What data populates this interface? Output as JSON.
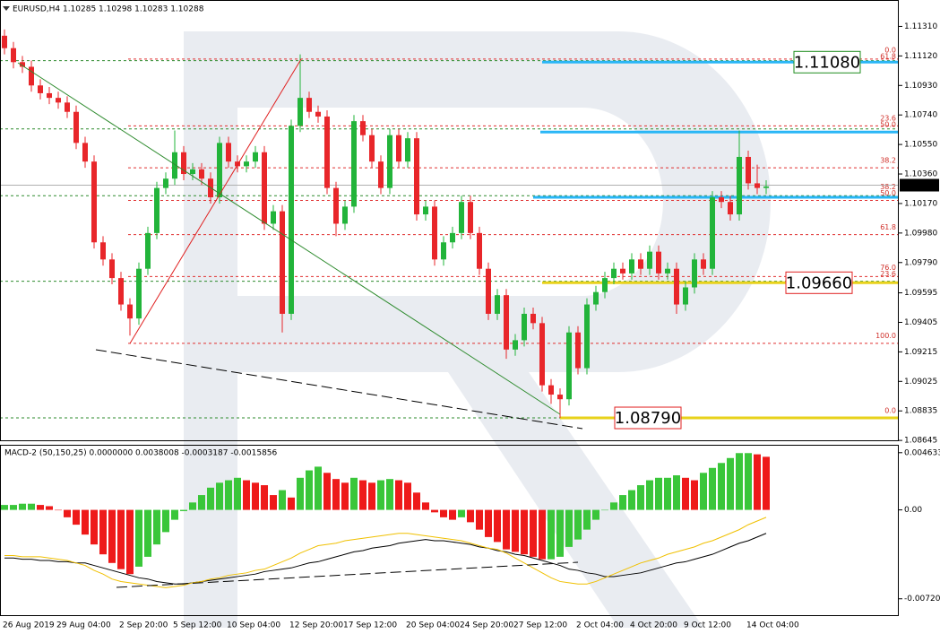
{
  "chart_data": [
    {
      "type": "candlestick",
      "title": "EURUSD,H4  1.10285 1.10298 1.10283 1.10288",
      "categories": [
        "26 Aug 2019",
        null,
        null,
        null,
        null,
        null,
        "29 Aug 04:00",
        null,
        null,
        null,
        null,
        null,
        null,
        "2 Sep 20:00",
        null,
        null,
        null,
        null,
        null,
        "5 Sep 12:00",
        null,
        null,
        null,
        null,
        null,
        "10 Sep 04:00",
        null,
        null,
        null,
        null,
        null,
        null,
        "12 Sep 20:00",
        null,
        null,
        null,
        null,
        null,
        "17 Sep 12:00",
        null,
        null,
        null,
        null,
        null,
        null,
        "20 Sep 04:00",
        null,
        null,
        null,
        null,
        null,
        "24 Sep 20:00",
        null,
        null,
        null,
        null,
        null,
        "27 Sep 12:00",
        null,
        null,
        null,
        null,
        null,
        null,
        "2 Oct 04:00",
        null,
        null,
        null,
        null,
        null,
        "4 Oct 20:00",
        null,
        null,
        null,
        null,
        null,
        "9 Oct 12:00",
        null,
        null,
        null,
        null,
        null,
        null,
        "14 Oct 04:00",
        null,
        null
      ],
      "open": [
        1.1125,
        1.1117,
        1.1108,
        1.1105,
        1.1093,
        1.1088,
        1.1085,
        1.1082,
        1.1076,
        1.1056,
        1.1044,
        1.0992,
        1.0981,
        1.0969,
        1.0952,
        1.0943,
        1.0975,
        1.0998,
        1.1027,
        1.1033,
        1.105,
        1.1036,
        1.1039,
        1.1033,
        1.1021,
        1.1056,
        1.1044,
        1.1041,
        1.1044,
        1.105,
        1.1004,
        1.1012,
        1.0946,
        1.1067,
        1.1085,
        1.1076,
        1.1073,
        1.1027,
        1.1004,
        1.1015,
        1.107,
        1.1061,
        1.1044,
        1.1027,
        1.1061,
        1.1044,
        1.1059,
        1.101,
        1.1015,
        1.0981,
        1.0992,
        1.0998,
        1.1018,
        1.0998,
        1.0975,
        1.0946,
        1.0958,
        1.0923,
        1.0929,
        1.0946,
        1.094,
        1.09,
        1.0894,
        1.0891,
        1.0934,
        1.0911,
        1.0952,
        1.096,
        1.0969,
        1.0975,
        1.0972,
        1.0981,
        1.0975,
        1.0986,
        1.0972,
        1.0975,
        1.0952,
        1.0963,
        1.0981,
        1.0975,
        1.1021,
        1.1018,
        1.101,
        1.1047,
        1.103,
        1.1027
      ],
      "high": [
        1.1129,
        1.1121,
        1.1112,
        1.1109,
        1.1097,
        1.1092,
        1.1089,
        1.1086,
        1.108,
        1.106,
        1.1048,
        1.0996,
        1.0985,
        1.0973,
        1.0956,
        1.0979,
        1.1002,
        1.1031,
        1.1037,
        1.1064,
        1.1054,
        1.1043,
        1.1043,
        1.1037,
        1.106,
        1.106,
        1.1048,
        1.1048,
        1.1054,
        1.1054,
        1.1016,
        1.1016,
        1.1071,
        1.1113,
        1.1089,
        1.108,
        1.1077,
        1.1031,
        1.1019,
        1.1074,
        1.1074,
        1.1065,
        1.1048,
        1.1065,
        1.1065,
        1.1063,
        1.1063,
        1.1019,
        1.1019,
        1.0996,
        1.1002,
        1.1022,
        1.1022,
        1.1002,
        1.0979,
        1.0962,
        1.0962,
        1.0933,
        1.095,
        1.095,
        1.0944,
        1.0904,
        1.0898,
        1.0938,
        1.0938,
        1.0956,
        1.0964,
        1.0973,
        1.0979,
        1.0979,
        1.0985,
        1.0985,
        1.099,
        1.099,
        1.0979,
        1.0979,
        1.0967,
        1.0985,
        1.0985,
        1.1025,
        1.1025,
        1.1022,
        1.1064,
        1.1051,
        1.1042,
        1.1032
      ],
      "low": [
        1.1113,
        1.1104,
        1.1101,
        1.1089,
        1.1084,
        1.1081,
        1.1078,
        1.1072,
        1.1052,
        1.104,
        1.0988,
        1.0977,
        1.0965,
        1.0948,
        1.0932,
        1.0939,
        1.0971,
        1.0994,
        1.1023,
        1.1029,
        1.1032,
        1.1032,
        1.1029,
        1.1017,
        1.1017,
        1.104,
        1.1037,
        1.1037,
        1.104,
        1.1,
        1.1,
        1.0934,
        1.0942,
        1.1063,
        1.1072,
        1.1069,
        1.1023,
        1.0996,
        1.1,
        1.1011,
        1.1057,
        1.104,
        1.1023,
        1.1023,
        1.104,
        1.104,
        1.1006,
        1.1006,
        1.0977,
        1.0977,
        1.0988,
        1.0994,
        1.0994,
        1.0971,
        1.0942,
        1.0942,
        1.0917,
        1.0919,
        1.0925,
        1.0936,
        1.0896,
        1.0888,
        1.0879,
        1.0887,
        1.0907,
        1.0907,
        1.0948,
        1.0956,
        1.0965,
        1.0968,
        1.0968,
        1.0971,
        1.0971,
        1.0968,
        1.0968,
        1.0946,
        1.0948,
        1.0959,
        1.0971,
        1.0971,
        1.1014,
        1.1006,
        1.1006,
        1.1026,
        1.1023,
        1.1023
      ],
      "close": [
        1.1117,
        1.1108,
        1.1105,
        1.1093,
        1.1088,
        1.1085,
        1.1082,
        1.1076,
        1.1056,
        1.1044,
        1.0992,
        1.0981,
        1.0969,
        1.0952,
        1.0943,
        1.0975,
        1.0998,
        1.1027,
        1.1033,
        1.105,
        1.1036,
        1.1039,
        1.1033,
        1.1021,
        1.1056,
        1.1044,
        1.1041,
        1.1044,
        1.105,
        1.1004,
        1.1012,
        1.0946,
        1.1067,
        1.1085,
        1.1076,
        1.1073,
        1.1027,
        1.1004,
        1.1015,
        1.107,
        1.1061,
        1.1044,
        1.1027,
        1.1061,
        1.1044,
        1.1059,
        1.101,
        1.1015,
        1.0981,
        1.0992,
        1.0998,
        1.1018,
        1.0998,
        1.0975,
        1.0946,
        1.0958,
        1.0923,
        1.0929,
        1.0946,
        1.094,
        1.09,
        1.0894,
        1.0891,
        1.0934,
        1.0911,
        1.0952,
        1.096,
        1.0969,
        1.0975,
        1.0972,
        1.0981,
        1.0975,
        1.0986,
        1.0972,
        1.0975,
        1.0952,
        1.0963,
        1.0981,
        1.0975,
        1.1021,
        1.1018,
        1.101,
        1.1047,
        1.103,
        1.1027,
        1.1028
      ],
      "up_color": "#22b43a",
      "down_color": "#e8262a",
      "ylim": [
        1.0864,
        1.1148
      ],
      "yticks": [
        {
          "value": 1.1131,
          "label": "1.11310"
        },
        {
          "value": 1.1112,
          "label": "1.11120"
        },
        {
          "value": 1.1093,
          "label": "1.10930"
        },
        {
          "value": 1.1074,
          "label": "1.10740"
        },
        {
          "value": 1.1055,
          "label": "1.10550"
        },
        {
          "value": 1.1036,
          "label": "1.10360"
        },
        {
          "value": 1.1017,
          "label": "1.10170"
        },
        {
          "value": 1.0998,
          "label": "1.09980"
        },
        {
          "value": 1.0979,
          "label": "1.09790"
        },
        1.09595,
        1.09405,
        1.09215,
        1.09025,
        1.08835,
        1.08645
      ],
      "last_price": 1.10288,
      "guide_lines": [
        1.1109,
        1.1065,
        1.1022,
        1.0967,
        1.0879
      ],
      "guide_color": "#2e8b2e",
      "fib_lines": [
        1.111,
        1.1067,
        1.104,
        1.1019,
        1.0997,
        1.097,
        1.0927
      ],
      "fib_color": "#e03030",
      "fib_labels": [
        {
          "label": "0.0",
          "value": 1.1114
        },
        {
          "label": "61.8",
          "value": 1.111
        },
        {
          "label": "23.6",
          "value": 1.107
        },
        {
          "label": "50.0",
          "value": 1.1066
        },
        {
          "label": "38.2",
          "value": 1.1043
        },
        {
          "label": "38.2",
          "value": 1.1026
        },
        {
          "label": "50.0",
          "value": 1.1022
        },
        {
          "label": "61.8",
          "value": 1.1
        },
        {
          "label": "76.0",
          "value": 1.0974
        },
        {
          "label": "23.6",
          "value": 1.097
        },
        {
          "label": "100.0",
          "value": 1.093
        },
        {
          "label": "0.0",
          "value": 1.0882
        }
      ],
      "levels": [
        {
          "value": 1.1063,
          "color": "#29b6f6"
        },
        {
          "value": 1.1021,
          "color": "#29b6f6"
        }
      ],
      "targets": [
        {
          "value": 1.1108,
          "label": "1.11080",
          "line_color": "#29b6f6",
          "label_color": "#1e8c1e"
        },
        {
          "value": 1.0966,
          "label": "1.09660",
          "line_color": "#e8d21a",
          "label_color": "#e02020"
        },
        {
          "value": 1.0879,
          "label": "1.08790",
          "line_color": "#e8d21a",
          "label_color": "#e02020"
        }
      ]
    },
    {
      "type": "macd",
      "title": "MACD-2 (50,150,25) 0.0000000 0.0038008 -0.0003187 -0.0015856",
      "values": [
        0.0004,
        0.0004,
        0.0005,
        0.0005,
        0.0004,
        0.0003,
        0.0,
        -0.0006,
        -0.0012,
        -0.002,
        -0.0028,
        -0.0036,
        -0.0043,
        -0.0048,
        -0.0052,
        -0.0046,
        -0.0038,
        -0.0028,
        -0.0018,
        -0.0008,
        -0.0001,
        0.0006,
        0.0012,
        0.0018,
        0.0022,
        0.0024,
        0.0026,
        0.0024,
        0.0022,
        0.002,
        0.0012,
        0.0016,
        0.001,
        0.0026,
        0.0032,
        0.0035,
        0.003,
        0.0025,
        0.0022,
        0.0026,
        0.0024,
        0.0022,
        0.0024,
        0.0025,
        0.0024,
        0.0022,
        0.0014,
        0.0006,
        -0.0002,
        -0.0006,
        -0.0008,
        -0.0006,
        -0.001,
        -0.0016,
        -0.0022,
        -0.0026,
        -0.0032,
        -0.0034,
        -0.0036,
        -0.0038,
        -0.004,
        -0.004,
        -0.0038,
        -0.003,
        -0.0024,
        -0.0016,
        -0.0008,
        0.0,
        0.0006,
        0.0012,
        0.0016,
        0.002,
        0.0024,
        0.0026,
        0.0026,
        0.0028,
        0.0026,
        0.0024,
        0.003,
        0.0034,
        0.0038,
        0.0042,
        0.0046,
        0.0046,
        0.0045,
        0.0043
      ],
      "up_color": "#3ac63a",
      "down_color": "#ee1a1a",
      "lines": [
        {
          "color": "#000000",
          "values": [
            -0.0039,
            -0.0039,
            -0.004,
            -0.004,
            -0.0041,
            -0.0041,
            -0.0042,
            -0.0042,
            -0.0043,
            -0.0043,
            -0.0045,
            -0.0047,
            -0.0049,
            -0.0051,
            -0.0053,
            -0.0055,
            -0.0056,
            -0.0058,
            -0.0059,
            -0.006,
            -0.006,
            -0.0059,
            -0.0058,
            -0.0057,
            -0.0056,
            -0.0055,
            -0.0054,
            -0.0053,
            -0.0052,
            -0.005,
            -0.0049,
            -0.0048,
            -0.0047,
            -0.0045,
            -0.0043,
            -0.0042,
            -0.004,
            -0.0038,
            -0.0036,
            -0.0034,
            -0.0033,
            -0.0031,
            -0.003,
            -0.0029,
            -0.0027,
            -0.0026,
            -0.0025,
            -0.0024,
            -0.0025,
            -0.0025,
            -0.0026,
            -0.0027,
            -0.0028,
            -0.003,
            -0.0031,
            -0.0033,
            -0.0034,
            -0.0036,
            -0.0037,
            -0.0039,
            -0.0041,
            -0.0043,
            -0.0045,
            -0.0048,
            -0.0049,
            -0.0051,
            -0.0052,
            -0.0054,
            -0.0054,
            -0.0053,
            -0.0052,
            -0.0051,
            -0.0049,
            -0.0047,
            -0.0045,
            -0.0043,
            -0.0042,
            -0.004,
            -0.0038,
            -0.0036,
            -0.0033,
            -0.003,
            -0.0027,
            -0.0025,
            -0.0022,
            -0.0019
          ]
        },
        {
          "color": "#f0c000",
          "values": [
            -0.0037,
            -0.0037,
            -0.0038,
            -0.0038,
            -0.0038,
            -0.0039,
            -0.004,
            -0.0041,
            -0.0043,
            -0.0045,
            -0.0049,
            -0.0052,
            -0.0056,
            -0.0058,
            -0.0059,
            -0.006,
            -0.0061,
            -0.0062,
            -0.0063,
            -0.0062,
            -0.0061,
            -0.0059,
            -0.0058,
            -0.0056,
            -0.0055,
            -0.0053,
            -0.0052,
            -0.0051,
            -0.0049,
            -0.0048,
            -0.0045,
            -0.0042,
            -0.0039,
            -0.0035,
            -0.0032,
            -0.0029,
            -0.0028,
            -0.0027,
            -0.0025,
            -0.0024,
            -0.0023,
            -0.0022,
            -0.0021,
            -0.002,
            -0.0019,
            -0.0019,
            -0.002,
            -0.0021,
            -0.0022,
            -0.0023,
            -0.0024,
            -0.0025,
            -0.0027,
            -0.0029,
            -0.0031,
            -0.0032,
            -0.0035,
            -0.0039,
            -0.0043,
            -0.0047,
            -0.0051,
            -0.0055,
            -0.0058,
            -0.0059,
            -0.006,
            -0.006,
            -0.0058,
            -0.0055,
            -0.0052,
            -0.0049,
            -0.0046,
            -0.0043,
            -0.0041,
            -0.0039,
            -0.0036,
            -0.0034,
            -0.0032,
            -0.003,
            -0.0027,
            -0.0025,
            -0.0022,
            -0.0019,
            -0.0016,
            -0.0012,
            -0.0009,
            -0.0006
          ]
        }
      ],
      "ylim": [
        -0.0086,
        0.0052
      ],
      "yticks": [
        0.0046336,
        {
          "value": 0,
          "label": "0.00"
        },
        -0.007201
      ]
    }
  ]
}
